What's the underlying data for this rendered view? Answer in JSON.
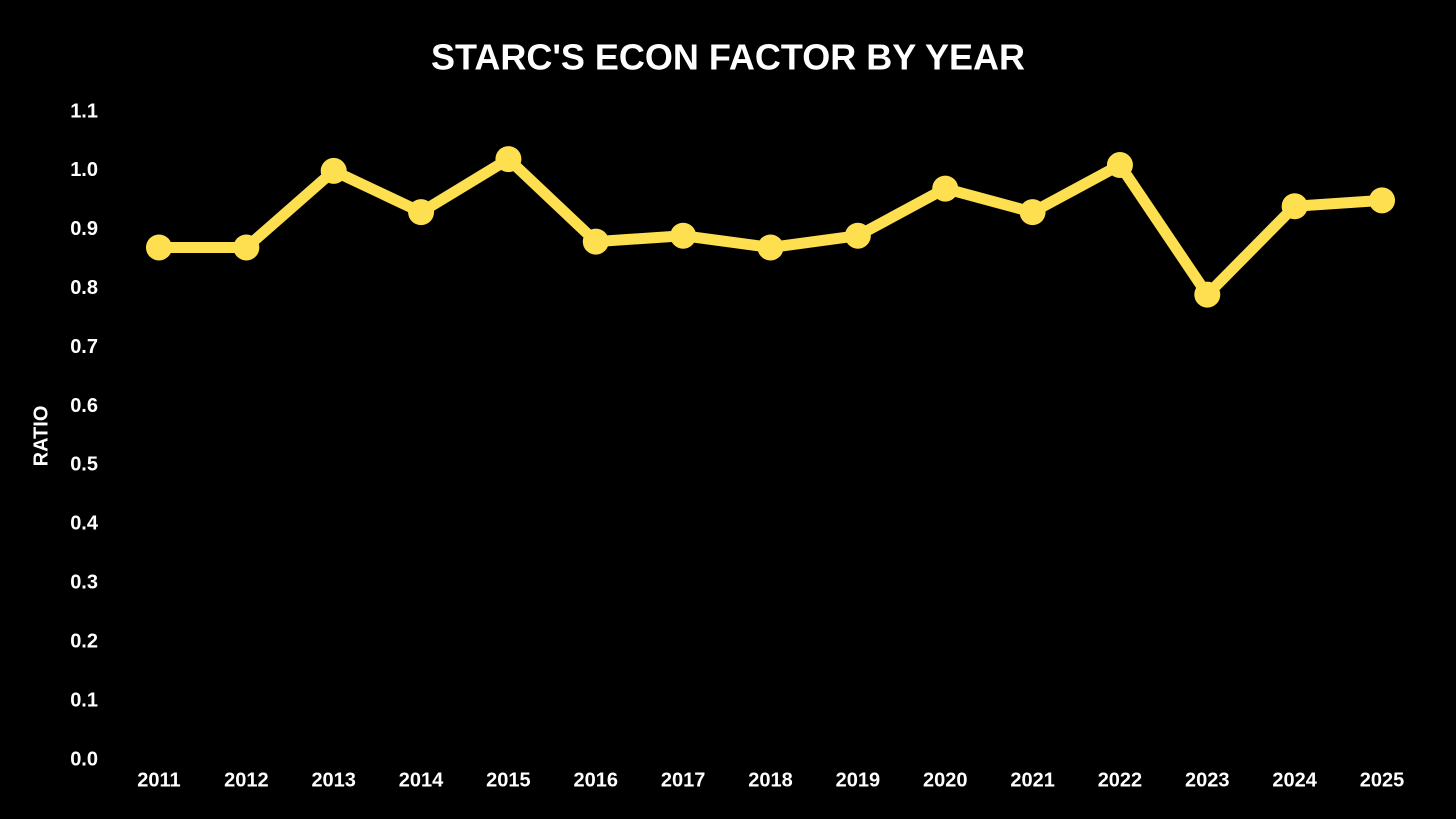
{
  "chart_data": {
    "type": "line",
    "title": "STARC'S ECON FACTOR BY YEAR",
    "y_label": "RATIO",
    "categories": [
      "2011",
      "2012",
      "2013",
      "2014",
      "2015",
      "2016",
      "2017",
      "2018",
      "2019",
      "2020",
      "2021",
      "2022",
      "2023",
      "2024",
      "2025"
    ],
    "values": [
      0.87,
      0.87,
      1.0,
      0.93,
      1.02,
      0.88,
      0.89,
      0.87,
      0.89,
      0.97,
      0.93,
      1.01,
      0.79,
      0.94,
      0.95
    ],
    "color": "#fddf50",
    "ylim": [
      0,
      1.1
    ],
    "yticks": [
      {
        "value": 0,
        "label": "0.0"
      },
      0.1,
      0.2,
      0.3,
      0.4,
      0.5,
      0.6,
      0.7,
      0.8,
      0.9,
      {
        "value": 1,
        "label": "1.0"
      },
      1.1
    ],
    "grid": false
  }
}
